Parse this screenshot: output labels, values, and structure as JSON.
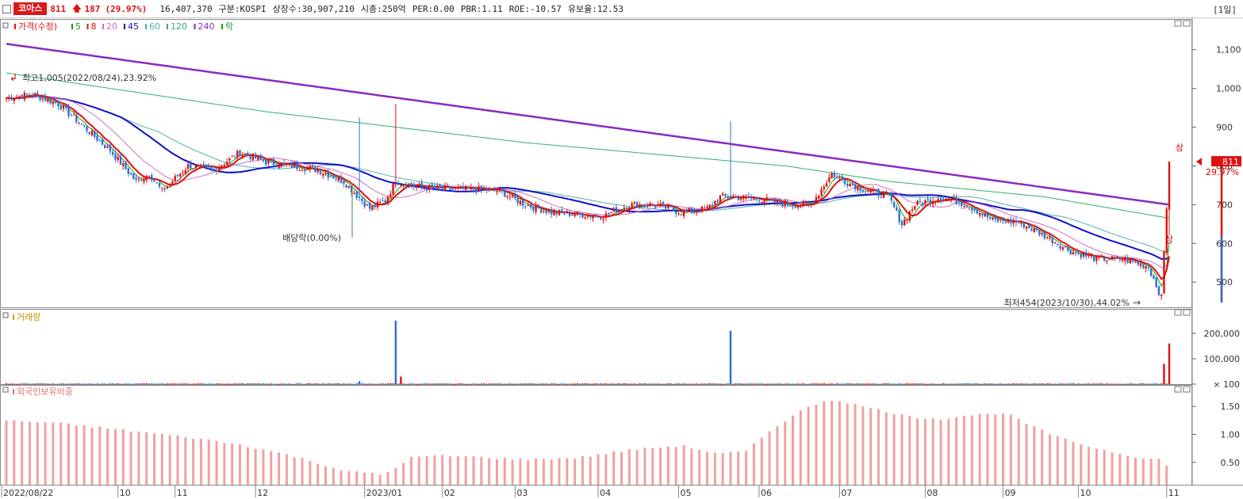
{
  "header": {
    "name": "코아스",
    "price": "811",
    "change": "187",
    "change_pct": "(29.97%)",
    "volume": "16,407,370",
    "market": "구분:KOSPI",
    "shares": "상장수:30,907,210",
    "mktcap": "시총:250억",
    "per": "PER:0.00",
    "pbr": "PBR:1.11",
    "roe": "ROE:-10.57",
    "float": "유보율:12.53",
    "period": "[1일]"
  },
  "legend": {
    "price": "가격(수정)",
    "ma5": "5",
    "ma8": "8",
    "ma20": "20",
    "ma45": "45",
    "ma60": "60",
    "ma120": "120",
    "ma240": "240",
    "ex": "락",
    "volume": "거래량",
    "foreign": "외국인보유비중"
  },
  "annotations": {
    "high": "최고1,005(2022/08/24),23.92%",
    "low": "최저454(2023/10/30),44.02%",
    "ex_div": "배당락(0.00%)",
    "limit_up": "상",
    "last_price": "811",
    "last_pct": "29.97%"
  },
  "colors": {
    "up": "#e01010",
    "down": "#2a6fd0",
    "ma5": "#1a9a1a",
    "ma8": "#e01010",
    "ma20": "#d070c0",
    "ma45": "#1010c8",
    "ma60": "#50b0b0",
    "ma120": "#30b070",
    "ma240": "#8a2ac0",
    "foreign_bar": "#f2a0a0"
  },
  "chart_data": {
    "type": "candlestick",
    "x_labels": [
      "2022/08/22",
      "10",
      "11",
      "12",
      "2023/01",
      "02",
      "03",
      "04",
      "05",
      "06",
      "07",
      "08",
      "09",
      "10",
      "11"
    ],
    "price_axis": {
      "ticks": [
        1100,
        1000,
        900,
        800,
        700,
        600,
        500
      ],
      "labels": [
        "1,100",
        "1,000",
        "900",
        "800",
        "700",
        "600",
        "500"
      ],
      "range": [
        435,
        1175
      ]
    },
    "volume_axis": {
      "ticks": [
        200000,
        100000,
        100
      ],
      "labels": [
        "200,000",
        "100,000",
        "× 100"
      ],
      "range": [
        0,
        290000
      ]
    },
    "foreign_axis": {
      "ticks": [
        1.5,
        1.0,
        0.5
      ],
      "labels": [
        "1.50",
        "1.00",
        "0.50"
      ],
      "range": [
        0.1,
        1.8
      ]
    },
    "close_anchors": [
      [
        0,
        975
      ],
      [
        10,
        985
      ],
      [
        20,
        960
      ],
      [
        30,
        900
      ],
      [
        40,
        840
      ],
      [
        50,
        760
      ],
      [
        55,
        780
      ],
      [
        60,
        735
      ],
      [
        70,
        800
      ],
      [
        80,
        790
      ],
      [
        90,
        835
      ],
      [
        100,
        810
      ],
      [
        110,
        800
      ],
      [
        120,
        790
      ],
      [
        130,
        760
      ],
      [
        140,
        690
      ],
      [
        146,
        710
      ],
      [
        150,
        760
      ],
      [
        160,
        745
      ],
      [
        170,
        740
      ],
      [
        180,
        740
      ],
      [
        190,
        735
      ],
      [
        200,
        700
      ],
      [
        210,
        680
      ],
      [
        220,
        675
      ],
      [
        230,
        670
      ],
      [
        240,
        700
      ],
      [
        250,
        700
      ],
      [
        260,
        680
      ],
      [
        270,
        690
      ],
      [
        275,
        720
      ],
      [
        280,
        720
      ],
      [
        290,
        715
      ],
      [
        300,
        700
      ],
      [
        310,
        700
      ],
      [
        318,
        780
      ],
      [
        320,
        770
      ],
      [
        330,
        740
      ],
      [
        340,
        720
      ],
      [
        345,
        650
      ],
      [
        350,
        700
      ],
      [
        360,
        720
      ],
      [
        370,
        700
      ],
      [
        380,
        660
      ],
      [
        390,
        655
      ],
      [
        400,
        620
      ],
      [
        410,
        580
      ],
      [
        420,
        560
      ],
      [
        430,
        560
      ],
      [
        440,
        540
      ],
      [
        445,
        460
      ],
      [
        448,
        811
      ]
    ],
    "volume_spikes": [
      [
        136,
        12000
      ],
      [
        150,
        250000
      ],
      [
        152,
        30000
      ],
      [
        279,
        210000
      ],
      [
        446,
        80000
      ],
      [
        448,
        160000
      ]
    ],
    "foreign_anchors": [
      [
        0,
        1.25
      ],
      [
        20,
        1.2
      ],
      [
        45,
        1.08
      ],
      [
        70,
        0.95
      ],
      [
        90,
        0.82
      ],
      [
        110,
        0.62
      ],
      [
        130,
        0.35
      ],
      [
        145,
        0.28
      ],
      [
        150,
        0.4
      ],
      [
        155,
        0.58
      ],
      [
        165,
        0.62
      ],
      [
        180,
        0.6
      ],
      [
        200,
        0.55
      ],
      [
        220,
        0.58
      ],
      [
        240,
        0.72
      ],
      [
        260,
        0.8
      ],
      [
        275,
        0.65
      ],
      [
        285,
        0.7
      ],
      [
        295,
        1.1
      ],
      [
        305,
        1.4
      ],
      [
        315,
        1.6
      ],
      [
        320,
        1.62
      ],
      [
        330,
        1.5
      ],
      [
        340,
        1.4
      ],
      [
        350,
        1.3
      ],
      [
        360,
        1.28
      ],
      [
        372,
        1.35
      ],
      [
        385,
        1.38
      ],
      [
        395,
        1.15
      ],
      [
        405,
        0.95
      ],
      [
        420,
        0.75
      ],
      [
        435,
        0.6
      ],
      [
        445,
        0.55
      ],
      [
        448,
        0.38
      ]
    ],
    "ma240_line": [
      [
        0,
        1115
      ],
      [
        448,
        700
      ]
    ],
    "ma120_line": [
      [
        0,
        1040
      ],
      [
        100,
        940
      ],
      [
        200,
        860
      ],
      [
        300,
        800
      ],
      [
        340,
        760
      ],
      [
        400,
        720
      ],
      [
        448,
        665
      ]
    ]
  }
}
